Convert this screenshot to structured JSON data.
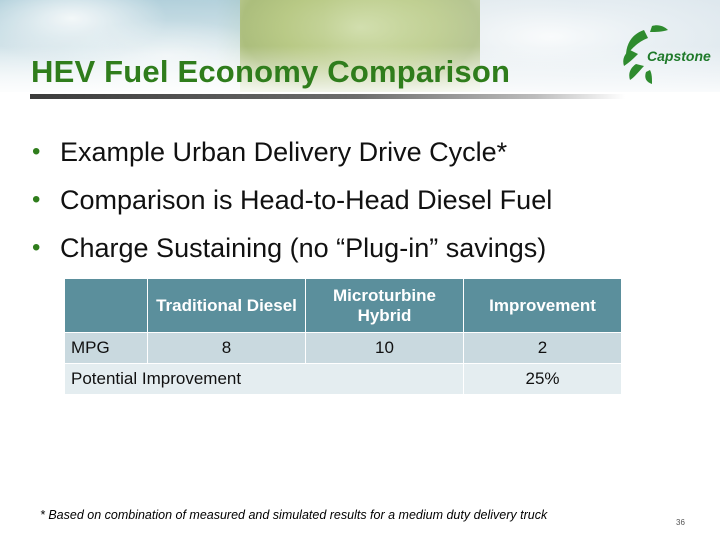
{
  "slide": {
    "title": "HEV Fuel Economy Comparison",
    "logo_text": "Capstone",
    "bullets": [
      "Example Urban Delivery Drive Cycle*",
      "Comparison is Head-to-Head Diesel Fuel",
      "Charge Sustaining (no “Plug-in” savings)"
    ],
    "table": {
      "headers": [
        "",
        "Traditional Diesel",
        "Microturbine Hybrid",
        "Improvement"
      ],
      "row1": [
        "MPG",
        "8",
        "10",
        "2"
      ],
      "row2": [
        "Potential Improvement",
        "25%"
      ]
    },
    "footnote": "* Based on combination of measured and simulated results for a medium duty delivery truck",
    "page_number": "36",
    "colors": {
      "title": "#2f7d1c",
      "table_header": "#5b8f9c",
      "row_dark": "#c9d9df",
      "row_light": "#e4edf0"
    }
  }
}
